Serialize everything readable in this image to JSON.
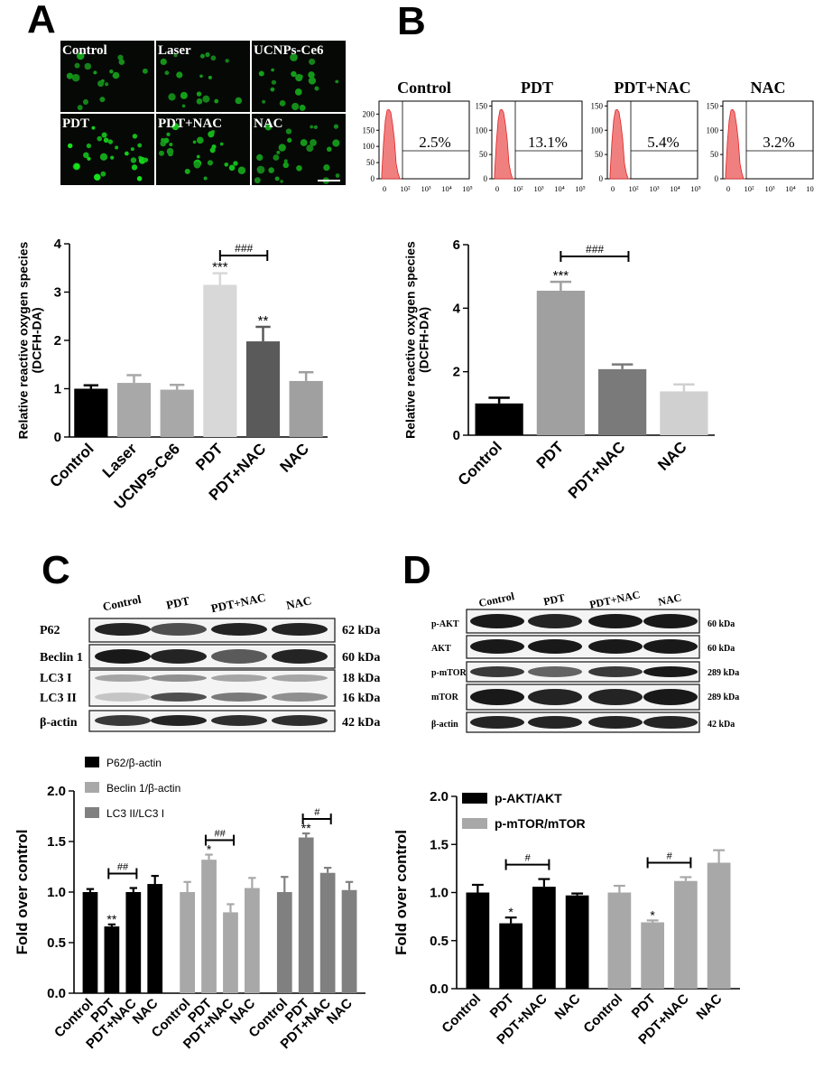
{
  "panels": {
    "A": {
      "letter": "A",
      "images": [
        "Control",
        "Laser",
        "UCNPs-Ce6",
        "PDT",
        "PDT+NAC",
        "NAC"
      ],
      "chart_data": {
        "type": "bar",
        "categories": [
          "Control",
          "Laser",
          "UCNPs-Ce6",
          "PDT",
          "PDT+NAC",
          "NAC"
        ],
        "values": [
          1.0,
          1.12,
          0.98,
          3.15,
          1.98,
          1.16
        ],
        "errors": [
          0.07,
          0.16,
          0.1,
          0.24,
          0.3,
          0.18
        ],
        "colors": [
          "#000000",
          "#a8a8a8",
          "#a8a8a8",
          "#d8d8d8",
          "#5a5a5a",
          "#a0a0a0"
        ],
        "ylabel": "Relative reactive oxygen species\n(DCFH-DA)",
        "ylim": [
          0,
          4
        ],
        "yticks": [
          "0",
          "1",
          "2",
          "3",
          "4"
        ],
        "annotations": [
          {
            "index": 3,
            "text": "***"
          },
          {
            "index": 4,
            "text": "**"
          }
        ],
        "brackets": [
          {
            "from": 3,
            "to": 4,
            "text": "###"
          }
        ]
      }
    },
    "B": {
      "letter": "B",
      "histograms": [
        {
          "title": "Control",
          "percent": "2.5%",
          "yticks": [
            "0",
            "50",
            "100",
            "150",
            "200"
          ],
          "ymax": 240
        },
        {
          "title": "PDT",
          "percent": "13.1%",
          "yticks": [
            "0",
            "50",
            "100",
            "150"
          ],
          "ymax": 160
        },
        {
          "title": "PDT+NAC",
          "percent": "5.4%",
          "yticks": [
            "0",
            "50",
            "100",
            "150"
          ],
          "ymax": 160
        },
        {
          "title": "NAC",
          "percent": "3.2%",
          "yticks": [
            "0",
            "50",
            "100",
            "150"
          ],
          "ymax": 160
        }
      ],
      "hist_xticks": [
        "0",
        "10²",
        "10³",
        "10⁴",
        "10⁵"
      ],
      "chart_data": {
        "type": "bar",
        "categories": [
          "Control",
          "PDT",
          "PDT+NAC",
          "NAC"
        ],
        "values": [
          1.0,
          4.55,
          2.08,
          1.38
        ],
        "errors": [
          0.18,
          0.28,
          0.15,
          0.22
        ],
        "colors": [
          "#000000",
          "#a0a0a0",
          "#7a7a7a",
          "#d0d0d0"
        ],
        "ylabel": "Relative reactive oxygen species\n(DCFH-DA)",
        "ylim": [
          0,
          6
        ],
        "yticks": [
          "0",
          "2",
          "4",
          "6"
        ],
        "annotations": [
          {
            "index": 1,
            "text": "***"
          }
        ],
        "brackets": [
          {
            "from": 1,
            "to": 2,
            "text": "###"
          }
        ]
      }
    },
    "C": {
      "letter": "C",
      "blot_lanes": [
        "Control",
        "PDT",
        "PDT+NAC",
        "NAC"
      ],
      "blot_rows": [
        {
          "label": "P62",
          "kda": "62 kDa"
        },
        {
          "label": "Beclin 1",
          "kda": "60 kDa"
        },
        {
          "label": "LC3 I",
          "kda": "18 kDa"
        },
        {
          "label": "LC3 II",
          "kda": "16 kDa"
        },
        {
          "label": "β-actin",
          "kda": "42 kDa"
        }
      ],
      "chart_data": {
        "type": "bar",
        "categories": [
          "Control",
          "PDT",
          "PDT+NAC",
          "NAC"
        ],
        "series": [
          {
            "name": "P62/β-actin",
            "color": "#000000",
            "values": [
              1.0,
              0.66,
              1.0,
              1.08
            ],
            "errors": [
              0.03,
              0.02,
              0.04,
              0.08
            ],
            "annotations": [
              {
                "index": 1,
                "text": "**"
              }
            ],
            "bracket": {
              "from": 1,
              "to": 2,
              "text": "##"
            }
          },
          {
            "name": "Beclin 1/β-actin",
            "color": "#a8a8a8",
            "values": [
              1.0,
              1.32,
              0.8,
              1.04
            ],
            "errors": [
              0.1,
              0.05,
              0.08,
              0.1
            ],
            "annotations": [
              {
                "index": 1,
                "text": "*"
              }
            ],
            "bracket": {
              "from": 1,
              "to": 2,
              "text": "##"
            }
          },
          {
            "name": "LC3 II/LC3 I",
            "color": "#808080",
            "values": [
              1.0,
              1.54,
              1.19,
              1.02
            ],
            "errors": [
              0.15,
              0.04,
              0.05,
              0.08
            ],
            "annotations": [
              {
                "index": 1,
                "text": "**"
              }
            ],
            "bracket": {
              "from": 1,
              "to": 2,
              "text": "#"
            }
          }
        ],
        "ylabel": "Fold over control",
        "ylim": [
          0,
          2.0
        ],
        "yticks": [
          "0.0",
          "0.5",
          "1.0",
          "1.5",
          "2.0"
        ],
        "legend_position": "top-left"
      }
    },
    "D": {
      "letter": "D",
      "blot_lanes": [
        "Control",
        "PDT",
        "PDT+NAC",
        "NAC"
      ],
      "blot_rows": [
        {
          "label": "p-AKT",
          "kda": "60 kDa"
        },
        {
          "label": "AKT",
          "kda": "60 kDa"
        },
        {
          "label": "p-mTOR",
          "kda": "289 kDa"
        },
        {
          "label": "mTOR",
          "kda": "289 kDa"
        },
        {
          "label": "β-actin",
          "kda": "42 kDa"
        }
      ],
      "chart_data": {
        "type": "bar",
        "categories": [
          "Control",
          "PDT",
          "PDT+NAC",
          "NAC"
        ],
        "series": [
          {
            "name": "p-AKT/AKT",
            "color": "#000000",
            "values": [
              1.0,
              0.68,
              1.06,
              0.97
            ],
            "errors": [
              0.08,
              0.06,
              0.08,
              0.02
            ],
            "annotations": [
              {
                "index": 1,
                "text": "*"
              }
            ],
            "bracket": {
              "from": 1,
              "to": 2,
              "text": "#"
            }
          },
          {
            "name": "p-mTOR/mTOR",
            "color": "#a8a8a8",
            "values": [
              1.0,
              0.69,
              1.12,
              1.31
            ],
            "errors": [
              0.07,
              0.02,
              0.04,
              0.13
            ],
            "annotations": [
              {
                "index": 1,
                "text": "*"
              }
            ],
            "bracket": {
              "from": 1,
              "to": 2,
              "text": "#"
            }
          }
        ],
        "ylabel": "Fold over control",
        "ylim": [
          0,
          2.0
        ],
        "yticks": [
          "0.0",
          "0.5",
          "1.0",
          "1.5",
          "2.0"
        ],
        "legend_position": "top-left"
      }
    }
  }
}
